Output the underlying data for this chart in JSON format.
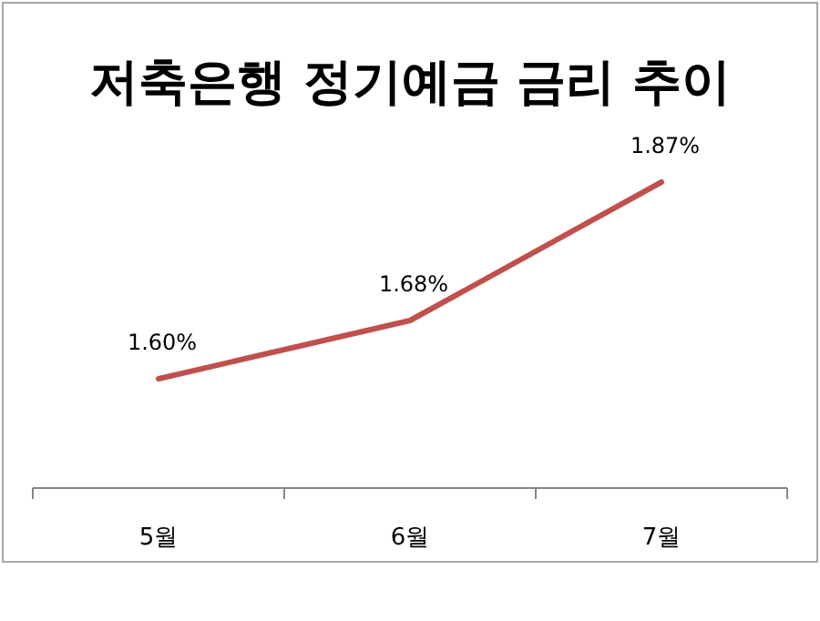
{
  "chart_data": {
    "type": "line",
    "title": "저축은행 정기예금 금리 추이",
    "categories": [
      "5월",
      "6월",
      "7월"
    ],
    "series": [
      {
        "color": "#c0504d",
        "values": [
          1.6,
          1.68,
          1.87
        ],
        "value_labels": [
          "1.60%",
          "1.68%",
          "1.87%"
        ]
      }
    ],
    "grid": false,
    "marker": "none",
    "line_style": "solid"
  }
}
